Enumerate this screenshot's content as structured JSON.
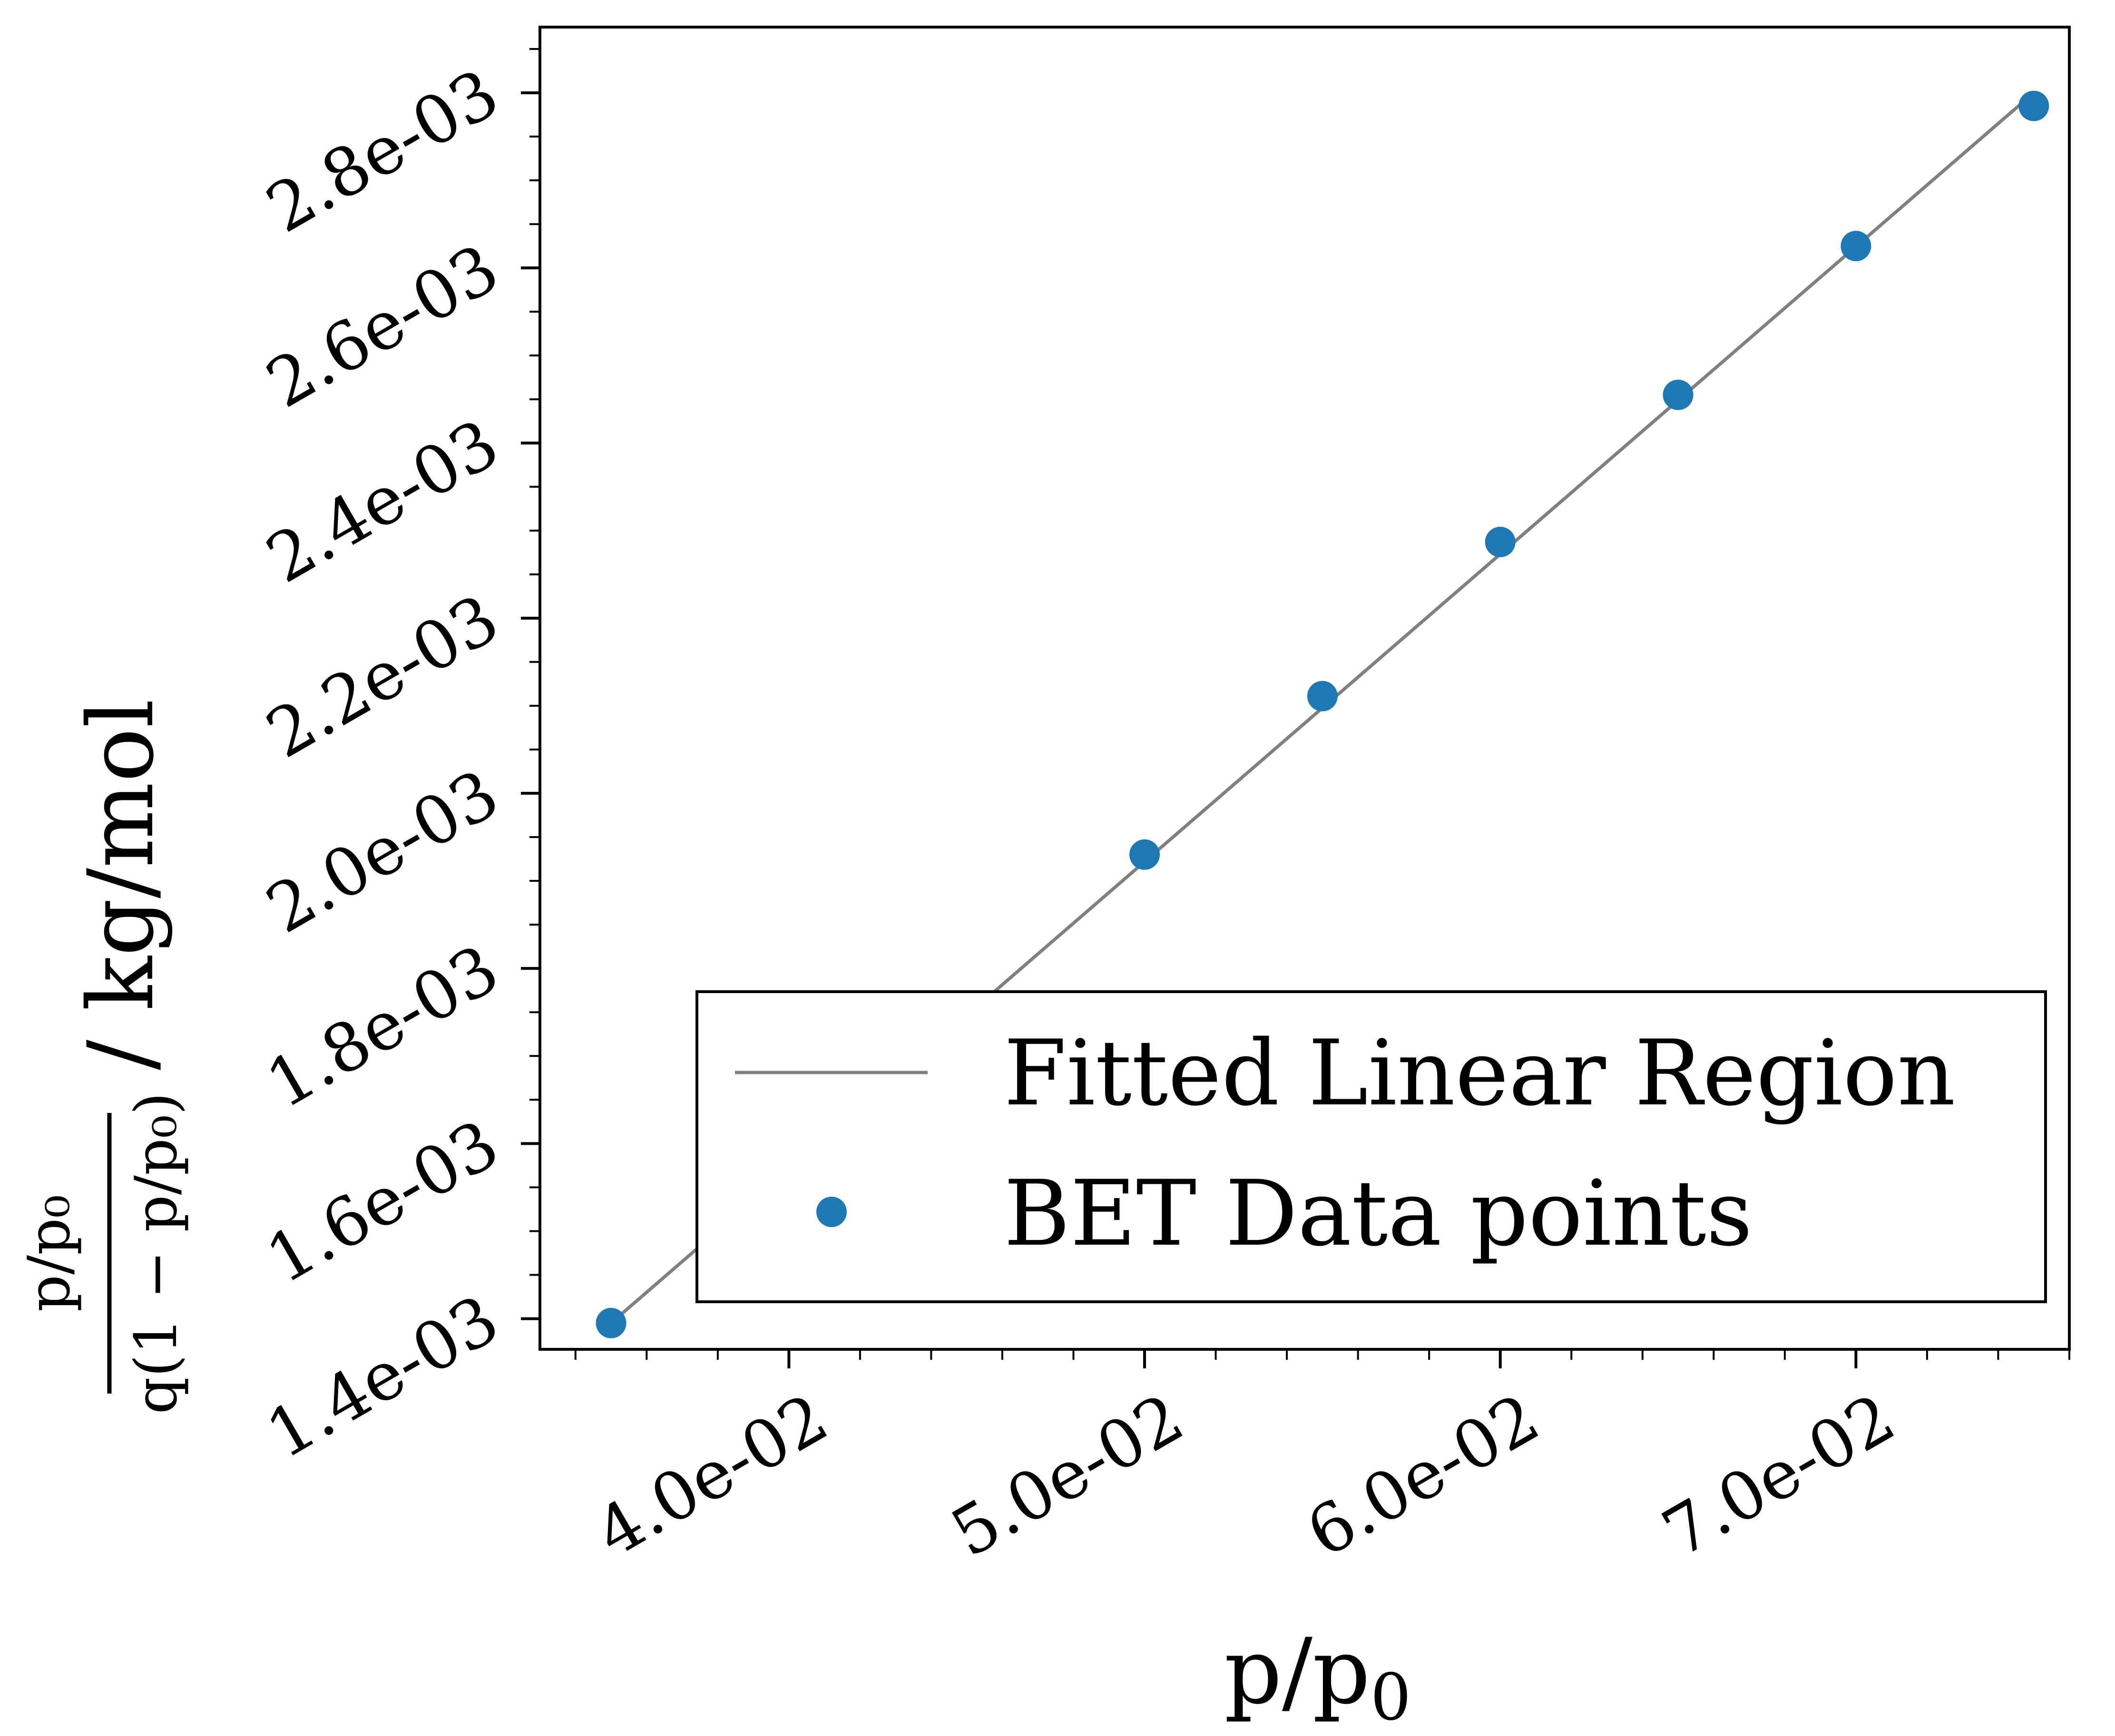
{
  "chart_data": {
    "type": "scatter",
    "x_scale": "linear",
    "y_scale": "linear",
    "xlim": [
      0.033,
      0.076
    ],
    "ylim": [
      0.001365,
      0.002875
    ],
    "x_ticks": [
      0.04,
      0.05,
      0.06,
      0.07
    ],
    "x_tick_labels": [
      "4.0e-02",
      "5.0e-02",
      "6.0e-02",
      "7.0e-02"
    ],
    "y_ticks": [
      0.0014,
      0.0016,
      0.0018,
      0.002,
      0.0022,
      0.0024,
      0.0026,
      0.0028
    ],
    "y_tick_labels": [
      "1.4e-03",
      "1.6e-03",
      "1.8e-03",
      "2.0e-03",
      "2.2e-03",
      "2.4e-03",
      "2.6e-03",
      "2.8e-03"
    ],
    "x_minor_step": 0.002,
    "y_minor_step": 5e-05,
    "xlabel": {
      "base": "p/p",
      "subscript": "0"
    },
    "ylabel": {
      "numerator": "p/p₀",
      "denominator": "q(1 − p/p₀)",
      "unit": "/ kg/mol"
    },
    "grid": false,
    "legend_position": "lower-right",
    "series": [
      {
        "name": "Fitted Linear Region",
        "style": "line",
        "color": "#808080",
        "x": [
          0.035,
          0.075
        ],
        "y": [
          0.001395,
          0.0028
        ]
      },
      {
        "name": "BET Data points",
        "style": "marker",
        "color": "#1f77b4",
        "x": [
          0.035,
          0.045,
          0.05,
          0.055,
          0.06,
          0.065,
          0.07,
          0.075
        ],
        "y": [
          0.001395,
          0.001753,
          0.00193,
          0.002111,
          0.002287,
          0.002455,
          0.002625,
          0.002785
        ]
      }
    ]
  }
}
